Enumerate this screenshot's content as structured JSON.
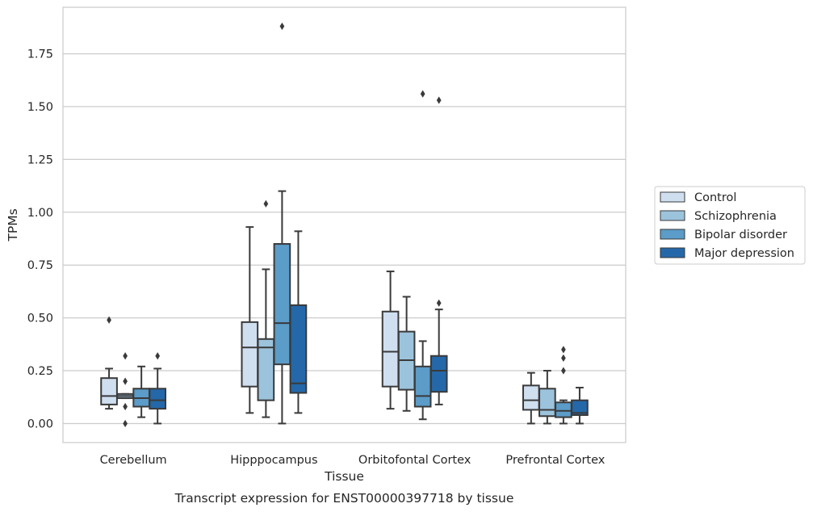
{
  "chart_data": {
    "type": "box",
    "title": "Transcript expression for ENST00000397718 by tissue",
    "xlabel": "Tissue",
    "ylabel": "TPMs",
    "ylim": [
      -0.09,
      1.97
    ],
    "yticks": [
      0.0,
      0.25,
      0.5,
      0.75,
      1.0,
      1.25,
      1.5,
      1.75
    ],
    "ytick_labels": [
      "0.00",
      "0.25",
      "0.50",
      "0.75",
      "1.00",
      "1.25",
      "1.50",
      "1.75"
    ],
    "grid": true,
    "legend_position": "right",
    "categories": [
      "Cerebellum",
      "Hipppocampus",
      "Orbitofontal Cortex",
      "Prefrontal Cortex"
    ],
    "series": [
      {
        "name": "Control",
        "color": "#cfdff0",
        "boxes": [
          {
            "whislo": 0.07,
            "q1": 0.09,
            "med": 0.13,
            "q3": 0.215,
            "whishi": 0.26,
            "fliers": [
              0.49
            ]
          },
          {
            "whislo": 0.05,
            "q1": 0.175,
            "med": 0.36,
            "q3": 0.48,
            "whishi": 0.93,
            "fliers": []
          },
          {
            "whislo": 0.07,
            "q1": 0.175,
            "med": 0.34,
            "q3": 0.53,
            "whishi": 0.72,
            "fliers": []
          },
          {
            "whislo": 0.0,
            "q1": 0.065,
            "med": 0.11,
            "q3": 0.18,
            "whishi": 0.24,
            "fliers": []
          }
        ]
      },
      {
        "name": "Schizophrenia",
        "color": "#9cc3dc",
        "boxes": [
          {
            "whislo": 0.12,
            "q1": 0.12,
            "med": 0.13,
            "q3": 0.14,
            "whishi": 0.14,
            "fliers": [
              0.32,
              0.2,
              0.08,
              0.0
            ]
          },
          {
            "whislo": 0.03,
            "q1": 0.11,
            "med": 0.36,
            "q3": 0.4,
            "whishi": 0.73,
            "fliers": [
              1.04
            ]
          },
          {
            "whislo": 0.06,
            "q1": 0.16,
            "med": 0.3,
            "q3": 0.435,
            "whishi": 0.6,
            "fliers": []
          },
          {
            "whislo": 0.0,
            "q1": 0.035,
            "med": 0.065,
            "q3": 0.165,
            "whishi": 0.25,
            "fliers": []
          }
        ]
      },
      {
        "name": "Bipolar disorder",
        "color": "#5b9cc8",
        "boxes": [
          {
            "whislo": 0.03,
            "q1": 0.08,
            "med": 0.12,
            "q3": 0.165,
            "whishi": 0.27,
            "fliers": []
          },
          {
            "whislo": 0.0,
            "q1": 0.28,
            "med": 0.475,
            "q3": 0.85,
            "whishi": 1.1,
            "fliers": [
              1.88
            ]
          },
          {
            "whislo": 0.02,
            "q1": 0.08,
            "med": 0.13,
            "q3": 0.27,
            "whishi": 0.39,
            "fliers": [
              1.56
            ]
          },
          {
            "whislo": 0.0,
            "q1": 0.03,
            "med": 0.06,
            "q3": 0.1,
            "whishi": 0.11,
            "fliers": [
              0.35,
              0.31,
              0.25
            ]
          }
        ]
      },
      {
        "name": "Major depression",
        "color": "#2468a9",
        "boxes": [
          {
            "whislo": 0.0,
            "q1": 0.07,
            "med": 0.11,
            "q3": 0.165,
            "whishi": 0.26,
            "fliers": [
              0.32
            ]
          },
          {
            "whislo": 0.05,
            "q1": 0.145,
            "med": 0.19,
            "q3": 0.56,
            "whishi": 0.91,
            "fliers": []
          },
          {
            "whislo": 0.09,
            "q1": 0.15,
            "med": 0.25,
            "q3": 0.32,
            "whishi": 0.54,
            "fliers": [
              1.53,
              0.57
            ]
          },
          {
            "whislo": 0.0,
            "q1": 0.04,
            "med": 0.05,
            "q3": 0.11,
            "whishi": 0.17,
            "fliers": []
          }
        ]
      }
    ]
  }
}
